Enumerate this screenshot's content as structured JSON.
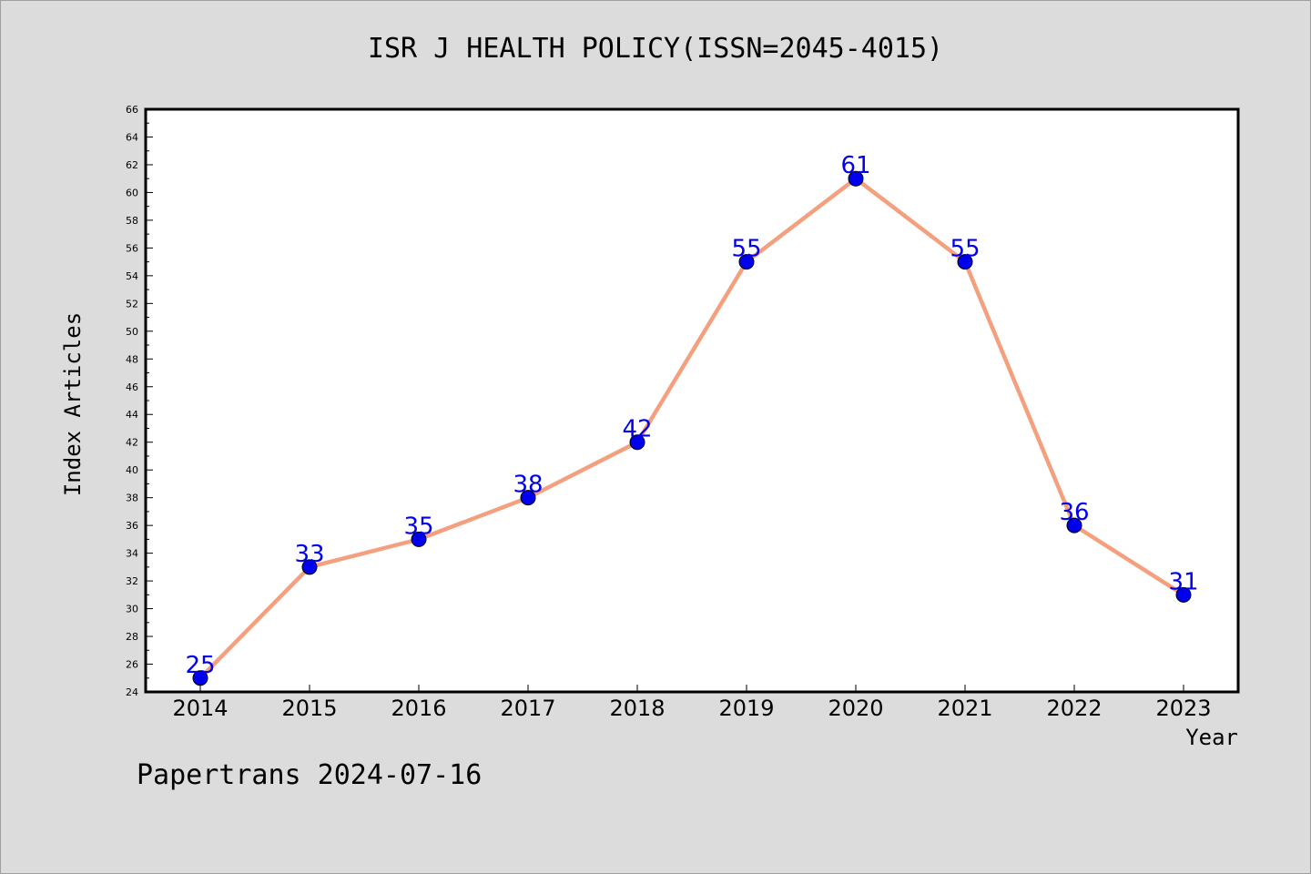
{
  "chart_data": {
    "type": "line",
    "title": "ISR J HEALTH POLICY(ISSN=2045-4015)",
    "xlabel": "Year",
    "ylabel": "Index Articles",
    "x": [
      "2014",
      "2015",
      "2016",
      "2017",
      "2018",
      "2019",
      "2020",
      "2021",
      "2022",
      "2023"
    ],
    "values": [
      25,
      33,
      35,
      38,
      42,
      55,
      61,
      55,
      36,
      31
    ],
    "ylim": [
      24,
      66
    ],
    "ytick_step": 2,
    "grid": false,
    "legend": "none",
    "colors": {
      "line": "#f4a07e",
      "marker": "#0000ee",
      "data_label": "#0000ee",
      "plot_bg": "#ffffff",
      "page_bg": "#dcdcdc"
    }
  },
  "footer": {
    "note": "Papertrans 2024-07-16"
  }
}
